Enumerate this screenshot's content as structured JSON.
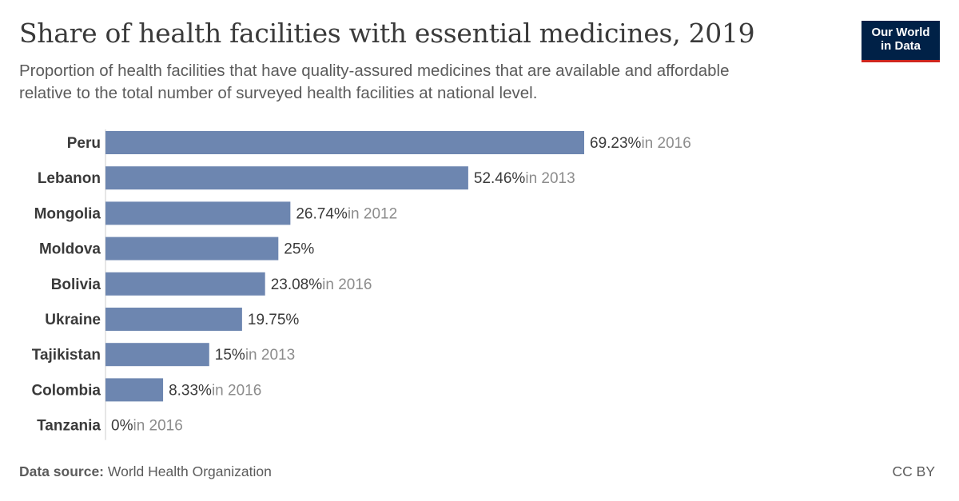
{
  "header": {
    "title": "Share of health facilities with essential medicines, 2019",
    "subtitle": "Proportion of health facilities that have quality-assured medicines that are available and affordable relative to the total number of surveyed health facilities at national level."
  },
  "logo": {
    "line1": "Our World",
    "line2": "in Data"
  },
  "footer": {
    "source_label": "Data source:",
    "source_value": "World Health Organization",
    "license": "CC BY"
  },
  "colors": {
    "bar": "#6d86b0",
    "label": "#3a3a3a",
    "year_note": "#8c8c8c",
    "axis": "#cccccc"
  },
  "chart_data": {
    "type": "bar",
    "orientation": "horizontal",
    "categories": [
      "Peru",
      "Lebanon",
      "Mongolia",
      "Moldova",
      "Bolivia",
      "Ukraine",
      "Tajikistan",
      "Colombia",
      "Tanzania"
    ],
    "values": [
      69.23,
      52.46,
      26.74,
      25,
      23.08,
      19.75,
      15,
      8.33,
      0
    ],
    "value_labels": [
      "69.23%",
      "52.46%",
      "26.74%",
      "25%",
      "23.08%",
      "19.75%",
      "15%",
      "8.33%",
      "0%"
    ],
    "year_notes": [
      "in 2016",
      "in 2013",
      "in 2012",
      "",
      "in 2016",
      "",
      "in 2013",
      "in 2016",
      "in 2016"
    ],
    "xlim": [
      0,
      69.23
    ],
    "grid": false,
    "legend": "none"
  }
}
